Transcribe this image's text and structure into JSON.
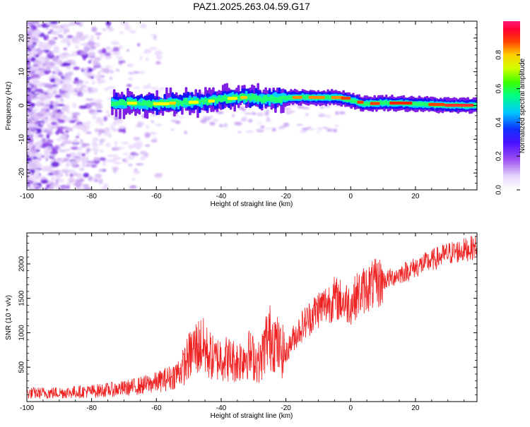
{
  "figure": {
    "title": "PAZ1.2025.263.04.59.G17"
  },
  "chart_data": [
    {
      "type": "heatmap",
      "xlabel": "Height of straight line (km)",
      "ylabel": "Frequency (Hz)",
      "xlim": [
        -100,
        39
      ],
      "ylim": [
        -25,
        25
      ],
      "xticks": [
        -100,
        -80,
        -60,
        -40,
        -20,
        0,
        20
      ],
      "yticks": [
        -20,
        -10,
        0,
        10,
        20
      ],
      "colorbar": {
        "label": "Normalized spectral amplitude",
        "range": [
          0,
          1
        ],
        "ticks": [
          "0.0",
          "0.2",
          "0.4",
          "0.6",
          "0.8"
        ],
        "tick_values": [
          0.0,
          0.2,
          0.4,
          0.6,
          0.8
        ],
        "colors": [
          "#ffffff",
          "#c9a8f0",
          "#7f1fe6",
          "#1414ff",
          "#00d0ff",
          "#00ff60",
          "#60ff00",
          "#ffff00",
          "#ff8c00",
          "#ff0000",
          "#ff1a7a"
        ]
      },
      "ridge_center_hz": [
        {
          "x": -74,
          "y": 0.8
        },
        {
          "x": -66,
          "y": 0.6
        },
        {
          "x": -60,
          "y": 0.5
        },
        {
          "x": -56,
          "y": 0.7
        },
        {
          "x": -52,
          "y": 0.9
        },
        {
          "x": -48,
          "y": 1.0
        },
        {
          "x": -44,
          "y": 1.3
        },
        {
          "x": -40,
          "y": 2.0
        },
        {
          "x": -36,
          "y": 2.2
        },
        {
          "x": -32,
          "y": 2.5
        },
        {
          "x": -28,
          "y": 1.8
        },
        {
          "x": -24,
          "y": 2.0
        },
        {
          "x": -20,
          "y": 2.3
        },
        {
          "x": -16,
          "y": 2.5
        },
        {
          "x": -10,
          "y": 2.3
        },
        {
          "x": -4,
          "y": 2.4
        },
        {
          "x": 0,
          "y": 1.5
        },
        {
          "x": 4,
          "y": 0.5
        },
        {
          "x": 10,
          "y": 0.8
        },
        {
          "x": 16,
          "y": 0.6
        },
        {
          "x": 22,
          "y": 0.4
        },
        {
          "x": 28,
          "y": 0.1
        },
        {
          "x": 34,
          "y": 0.0
        },
        {
          "x": 39,
          "y": 0.0
        }
      ]
    },
    {
      "type": "line",
      "xlabel": "Height of straight line (km)",
      "ylabel": "SNR (10 * v/v)",
      "xlim": [
        -100,
        39
      ],
      "ylim": [
        0,
        2450
      ],
      "xticks": [
        -100,
        -80,
        -60,
        -40,
        -20,
        0,
        20
      ],
      "yticks": [
        500,
        1000,
        1500,
        2000
      ],
      "color": "#ee2222",
      "series": [
        {
          "x": [
            -100,
            -90,
            -80,
            -70,
            -65,
            -60,
            -55,
            -52,
            -50,
            -48,
            -46,
            -44,
            -42,
            -40,
            -38,
            -35,
            -32,
            -30,
            -28,
            -26,
            -24,
            -22,
            -20,
            -18,
            -15,
            -12,
            -10,
            -8,
            -5,
            -2,
            0,
            2,
            5,
            10,
            15,
            20,
            25,
            30,
            35,
            39
          ],
          "values": [
            120,
            130,
            150,
            190,
            230,
            280,
            360,
            480,
            650,
            780,
            820,
            700,
            600,
            650,
            620,
            580,
            700,
            640,
            560,
            900,
            950,
            750,
            700,
            900,
            1100,
            1250,
            1350,
            1400,
            1500,
            1450,
            1420,
            1550,
            1650,
            1750,
            1850,
            1950,
            2050,
            2150,
            2200,
            2250
          ]
        }
      ]
    }
  ]
}
